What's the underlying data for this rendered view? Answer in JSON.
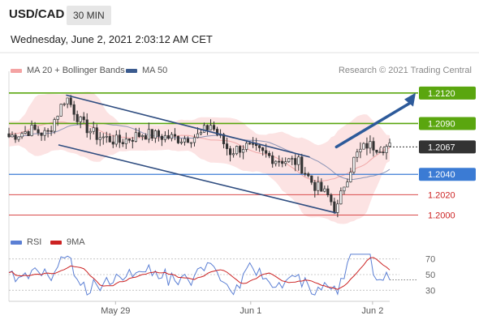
{
  "header": {
    "symbol": "USD/CAD",
    "timeframe": "30 MIN",
    "datetime": "Wednesday, June 2, 2021 2:03:12 AM CET"
  },
  "legend": {
    "bollinger_label": "MA 20 + Bollinger Bands",
    "bollinger_color": "#f4a3a3",
    "ma50_label": "MA 50",
    "ma50_color": "#3b5b8f",
    "credit": "Research © 2021 Trading Central"
  },
  "rsi_legend": {
    "rsi_label": "RSI",
    "rsi_color": "#5b7fd4",
    "ma9_label": "9MA",
    "ma9_color": "#cc2222"
  },
  "colors": {
    "resistance": "#5aa60f",
    "support": "#3b7bd4",
    "minor_level": "#d94a4a",
    "channel": "#2f4d80",
    "arrow": "#2d5a9a",
    "candle_up": "#ffffff",
    "candle_down": "#333333"
  },
  "chart_data": {
    "type": "candlestick",
    "y_range": [
      1.199,
      1.2135
    ],
    "x_labels": [
      "May 29",
      "Jun 1",
      "Jun 2"
    ],
    "price_levels": [
      {
        "value": 1.212,
        "label": "1.2120",
        "kind": "resistance"
      },
      {
        "value": 1.209,
        "label": "1.2090",
        "kind": "resistance"
      },
      {
        "value": 1.2067,
        "label": "1.2067",
        "kind": "last"
      },
      {
        "value": 1.204,
        "label": "1.2040",
        "kind": "support"
      },
      {
        "value": 1.202,
        "label": "1.2020",
        "kind": "minor"
      },
      {
        "value": 1.2,
        "label": "1.2000",
        "kind": "minor"
      }
    ],
    "channel": {
      "upper": [
        [
          0.15,
          1.2118
        ],
        [
          0.79,
          1.2057
        ]
      ],
      "lower": [
        [
          0.13,
          1.2069
        ],
        [
          0.86,
          1.2002
        ]
      ]
    },
    "forecast": {
      "from": [
        0.86,
        1.2067
      ],
      "to": [
        1.0,
        1.2117
      ]
    },
    "rsi": {
      "levels": [
        70,
        50,
        30
      ],
      "tick_labels": [
        "70",
        "50",
        "30"
      ],
      "range": [
        20,
        80
      ]
    }
  }
}
